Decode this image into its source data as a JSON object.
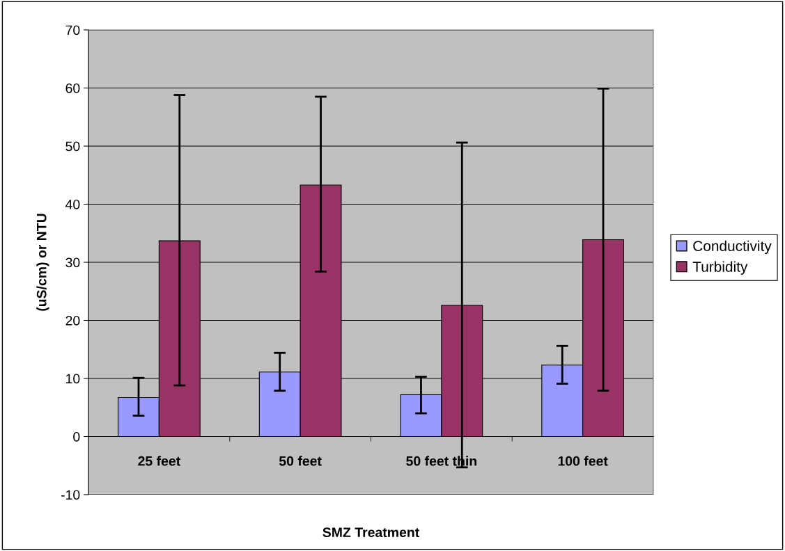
{
  "chart_data": {
    "type": "bar",
    "xlabel": "SMZ Treatment",
    "ylabel": "(uS/cm) or NTU",
    "categories": [
      "25 feet",
      "50 feet",
      "50 feet thin",
      "100 feet"
    ],
    "series": [
      {
        "name": "Conductivity",
        "color": "#9999ff",
        "values": [
          6.7,
          11.1,
          7.2,
          12.3
        ],
        "errors": [
          [
            3.6,
            10.1
          ],
          [
            7.9,
            14.4
          ],
          [
            4.0,
            10.3
          ],
          [
            9.1,
            15.6
          ]
        ]
      },
      {
        "name": "Turbidity",
        "color": "#993366",
        "values": [
          33.7,
          43.3,
          22.6,
          33.9
        ],
        "errors": [
          [
            8.8,
            58.8
          ],
          [
            28.4,
            58.5
          ],
          [
            -5.3,
            50.6
          ],
          [
            7.9,
            59.9
          ]
        ]
      }
    ],
    "ylim": [
      -10,
      70
    ],
    "yticks": [
      -10,
      0,
      10,
      20,
      30,
      40,
      50,
      60,
      70
    ],
    "grid": "y",
    "legend": "right"
  }
}
